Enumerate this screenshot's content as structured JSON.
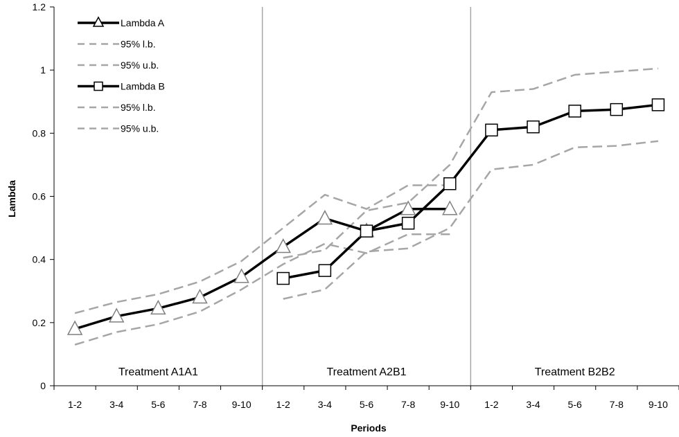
{
  "chart_data": {
    "type": "line",
    "xlabel": "Periods",
    "ylabel": "Lambda",
    "ylim": [
      0,
      1.2
    ],
    "yticks": [
      "0",
      "0.2",
      "0.4",
      "0.6",
      "0.8",
      "1",
      "1.2"
    ],
    "ytick_values": [
      0,
      0.2,
      0.4,
      0.6,
      0.8,
      1.0,
      1.2
    ],
    "categories": [
      "1-2",
      "3-4",
      "5-6",
      "7-8",
      "9-10",
      "1-2",
      "3-4",
      "5-6",
      "7-8",
      "9-10",
      "1-2",
      "3-4",
      "5-6",
      "7-8",
      "9-10"
    ],
    "treatments": [
      "Treatment A1A1",
      "Treatment A2B1",
      "Treatment B2B2"
    ],
    "grid": false,
    "legend_position": "top-left",
    "series": [
      {
        "name": "Lambda A",
        "style": "solid",
        "marker": "triangle",
        "values": [
          0.18,
          0.22,
          0.245,
          0.28,
          0.345,
          0.44,
          0.53,
          0.49,
          0.56,
          0.56,
          null,
          null,
          null,
          null,
          null
        ]
      },
      {
        "name": "95% l.b.",
        "style": "dashed",
        "marker": "none",
        "values": [
          0.13,
          0.17,
          0.195,
          0.235,
          0.305,
          0.385,
          0.45,
          0.42,
          0.48,
          0.48,
          null,
          null,
          null,
          null,
          null
        ]
      },
      {
        "name": "95% u.b.",
        "style": "dashed",
        "marker": "none",
        "values": [
          0.23,
          0.265,
          0.29,
          0.33,
          0.395,
          0.5,
          0.605,
          0.56,
          0.635,
          0.635,
          null,
          null,
          null,
          null,
          null
        ]
      },
      {
        "name": "Lambda B",
        "style": "solid",
        "marker": "square",
        "values": [
          null,
          null,
          null,
          null,
          null,
          0.34,
          0.365,
          0.49,
          0.515,
          0.64,
          0.81,
          0.82,
          0.87,
          0.875,
          0.89
        ]
      },
      {
        "name": "95% l.b.",
        "style": "dashed",
        "marker": "none",
        "values": [
          null,
          null,
          null,
          null,
          null,
          0.275,
          0.305,
          0.425,
          0.435,
          0.5,
          0.685,
          0.7,
          0.755,
          0.76,
          0.775
        ]
      },
      {
        "name": "95% u.b.",
        "style": "dashed",
        "marker": "none",
        "values": [
          null,
          null,
          null,
          null,
          null,
          0.405,
          0.43,
          0.555,
          0.58,
          0.7,
          0.93,
          0.94,
          0.985,
          0.995,
          1.005
        ]
      }
    ],
    "colors": {
      "main_line": "#000000",
      "ci_line": "#a6a6a6",
      "marker_fill": "#ffffff",
      "divider": "#a6a6a6"
    }
  }
}
